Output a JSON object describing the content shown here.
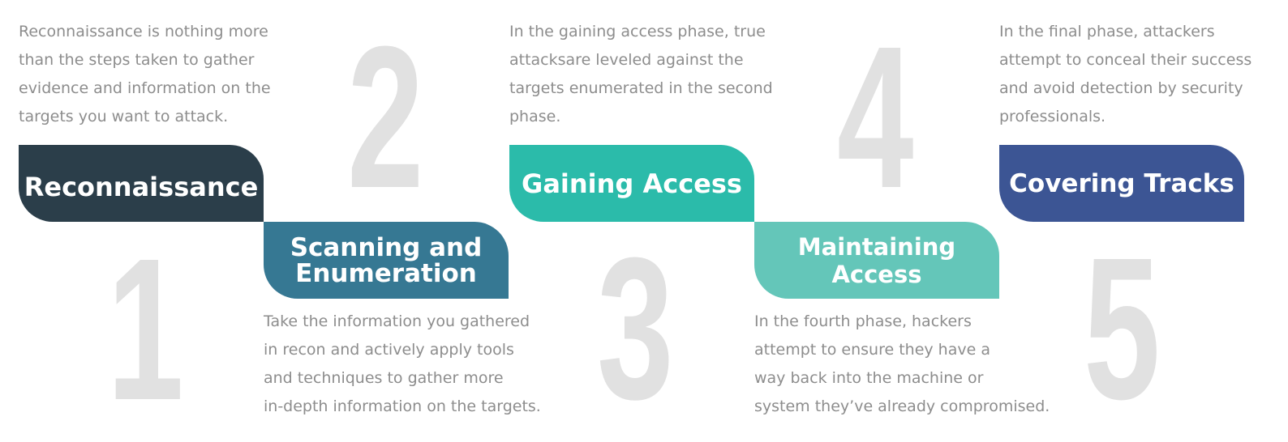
{
  "steps": [
    {
      "number": "1",
      "title_lines": [
        "Reconnaissance"
      ],
      "description_lines": [
        "Reconnaissance is nothing more",
        "than the steps taken to gather",
        "evidence and information on the",
        "targets you want to attack."
      ],
      "color": "#2b3e4a"
    },
    {
      "number": "2",
      "title_lines": [
        "Scanning and",
        "Enumeration"
      ],
      "description_lines": [
        "Take the information you gathered",
        "in recon and actively apply tools",
        "and techniques to gather more",
        "in-depth information on the targets."
      ],
      "color": "#367893"
    },
    {
      "number": "3",
      "title_lines": [
        "Gaining Access"
      ],
      "description_lines": [
        "In the gaining access phase, true",
        "attacksare leveled against the",
        "targets enumerated in the second",
        "phase."
      ],
      "color": "#2bbbaa"
    },
    {
      "number": "4",
      "title_lines": [
        "Maintaining Access"
      ],
      "description_lines": [
        "In the fourth phase, hackers",
        "attempt to ensure they have a",
        "way back into the machine or",
        "system they’ve already compromised."
      ],
      "color": "#64c6b9"
    },
    {
      "number": "5",
      "title_lines": [
        "Covering Tracks"
      ],
      "description_lines": [
        "In the final phase,  attackers",
        "attempt to conceal their success",
        "and avoid detection by security",
        "professionals."
      ],
      "color": "#3c5594"
    }
  ]
}
